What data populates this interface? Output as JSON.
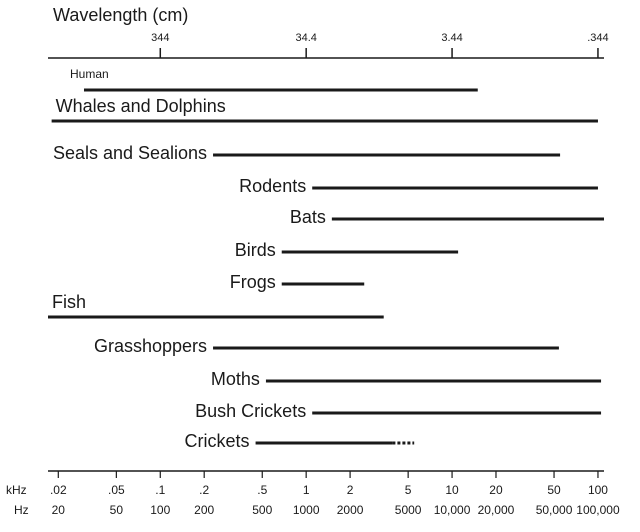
{
  "chart_data": {
    "type": "range",
    "x2_title": "Wavelength (cm)",
    "log_x": true,
    "color": "#1a1a1a",
    "xlim": [
      17,
      110000
    ],
    "x2lim": [
      2024,
      0.3127
    ],
    "x2ticks": [
      344,
      34.4,
      3.44,
      {
        "value": 0.344,
        "label": ".344"
      }
    ],
    "xticks": [
      20,
      50,
      100,
      200,
      500,
      1000,
      2000,
      5000,
      {
        "value": 10000,
        "label": "10,000"
      },
      {
        "value": 20000,
        "label": "20,000"
      },
      {
        "value": 50000,
        "label": "50,000"
      },
      {
        "value": 100000,
        "label": "100,000"
      }
    ],
    "xtick_khz_labels": [
      ".02",
      ".05",
      ".1",
      ".2",
      ".5",
      "1",
      "2",
      "5",
      "10",
      "20",
      "50",
      "100"
    ],
    "khz_unit": "kHz",
    "hz_unit": "Hz",
    "rows": [
      {
        "name": "Human",
        "low": 30,
        "high": 15000,
        "label_above": true,
        "small_label": true
      },
      {
        "name": "Whales and Dolphins",
        "low": 18,
        "high": 100000,
        "label_above": true
      },
      {
        "name": "Seals and Sealions",
        "low": 230,
        "high": 55000
      },
      {
        "name": "Rodents",
        "low": 1100,
        "high": 100000
      },
      {
        "name": "Bats",
        "low": 1500,
        "high": 110000
      },
      {
        "name": "Birds",
        "low": 680,
        "high": 11000
      },
      {
        "name": "Frogs",
        "low": 680,
        "high": 2500
      },
      {
        "name": "Fish",
        "low": 17,
        "high": 3400,
        "label_above": true
      },
      {
        "name": "Grasshoppers",
        "low": 230,
        "high": 54000
      },
      {
        "name": "Moths",
        "low": 530,
        "high": 105000
      },
      {
        "name": "Bush Crickets",
        "low": 1100,
        "high": 105000
      },
      {
        "name": "Crickets",
        "low": 450,
        "high": 3900,
        "dotted_high": 5500
      }
    ]
  }
}
